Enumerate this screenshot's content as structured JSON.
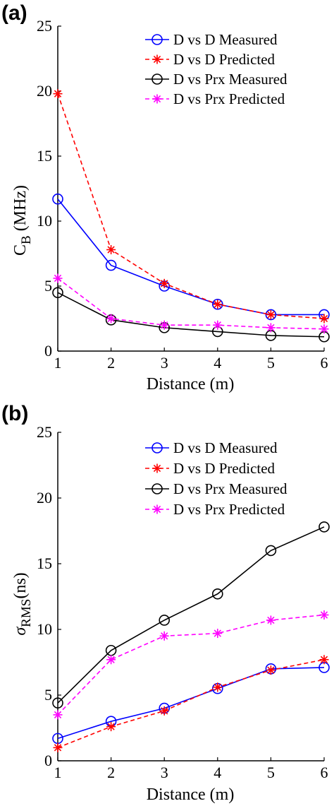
{
  "chart_data": [
    {
      "type": "line",
      "panel_label": "(a)",
      "xlabel": "Distance (m)",
      "ylabel": {
        "main": "C",
        "sub": "B",
        "rest": " (MHz)"
      },
      "xlim": [
        1,
        6
      ],
      "ylim": [
        0,
        25
      ],
      "xticks": [
        "1",
        "2",
        "3",
        "4",
        "5",
        "6"
      ],
      "yticks": [
        "0",
        "5",
        "10",
        "15",
        "20",
        "25"
      ],
      "x": [
        1,
        2,
        3,
        4,
        5,
        6
      ],
      "legend_position": "top-right",
      "grid": false,
      "series": [
        {
          "name": "D vs D Measured",
          "color": "#0000ff",
          "style": "solid",
          "marker": "circle",
          "values": [
            11.7,
            6.6,
            5.0,
            3.6,
            2.8,
            2.8
          ]
        },
        {
          "name": "D vs D Predicted",
          "color": "#ff0000",
          "style": "dashed",
          "marker": "star",
          "values": [
            19.8,
            7.8,
            5.2,
            3.6,
            2.8,
            2.5
          ]
        },
        {
          "name": "D vs Prx Measured",
          "color": "#000000",
          "style": "solid",
          "marker": "circle",
          "values": [
            4.5,
            2.4,
            1.8,
            1.5,
            1.2,
            1.1
          ]
        },
        {
          "name": "D vs Prx Predicted",
          "color": "#ff00ff",
          "style": "dashed",
          "marker": "star",
          "values": [
            5.6,
            2.5,
            2.0,
            2.0,
            1.8,
            1.7
          ]
        }
      ]
    },
    {
      "type": "line",
      "panel_label": "(b)",
      "xlabel": "Distance (m)",
      "ylabel": {
        "main": "σ",
        "sub": "RMS",
        "rest": "(ns)"
      },
      "xlim": [
        1,
        6
      ],
      "ylim": [
        0,
        25
      ],
      "xticks": [
        "1",
        "2",
        "3",
        "4",
        "5",
        "6"
      ],
      "yticks": [
        "0",
        "5",
        "10",
        "15",
        "20",
        "25"
      ],
      "x": [
        1,
        2,
        3,
        4,
        5,
        6
      ],
      "legend_position": "top-right",
      "grid": false,
      "series": [
        {
          "name": "D vs D Measured",
          "color": "#0000ff",
          "style": "solid",
          "marker": "circle",
          "values": [
            1.7,
            3.0,
            4.0,
            5.5,
            7.0,
            7.1
          ]
        },
        {
          "name": "D vs D Predicted",
          "color": "#ff0000",
          "style": "dashed",
          "marker": "star",
          "values": [
            1.0,
            2.6,
            3.8,
            5.6,
            6.9,
            7.7
          ]
        },
        {
          "name": "D vs Prx Measured",
          "color": "#000000",
          "style": "solid",
          "marker": "circle",
          "values": [
            4.4,
            8.4,
            10.7,
            12.7,
            16.0,
            17.8
          ]
        },
        {
          "name": "D vs Prx Predicted",
          "color": "#ff00ff",
          "style": "dashed",
          "marker": "star",
          "values": [
            3.5,
            7.7,
            9.5,
            9.7,
            10.7,
            11.1
          ]
        }
      ]
    }
  ]
}
